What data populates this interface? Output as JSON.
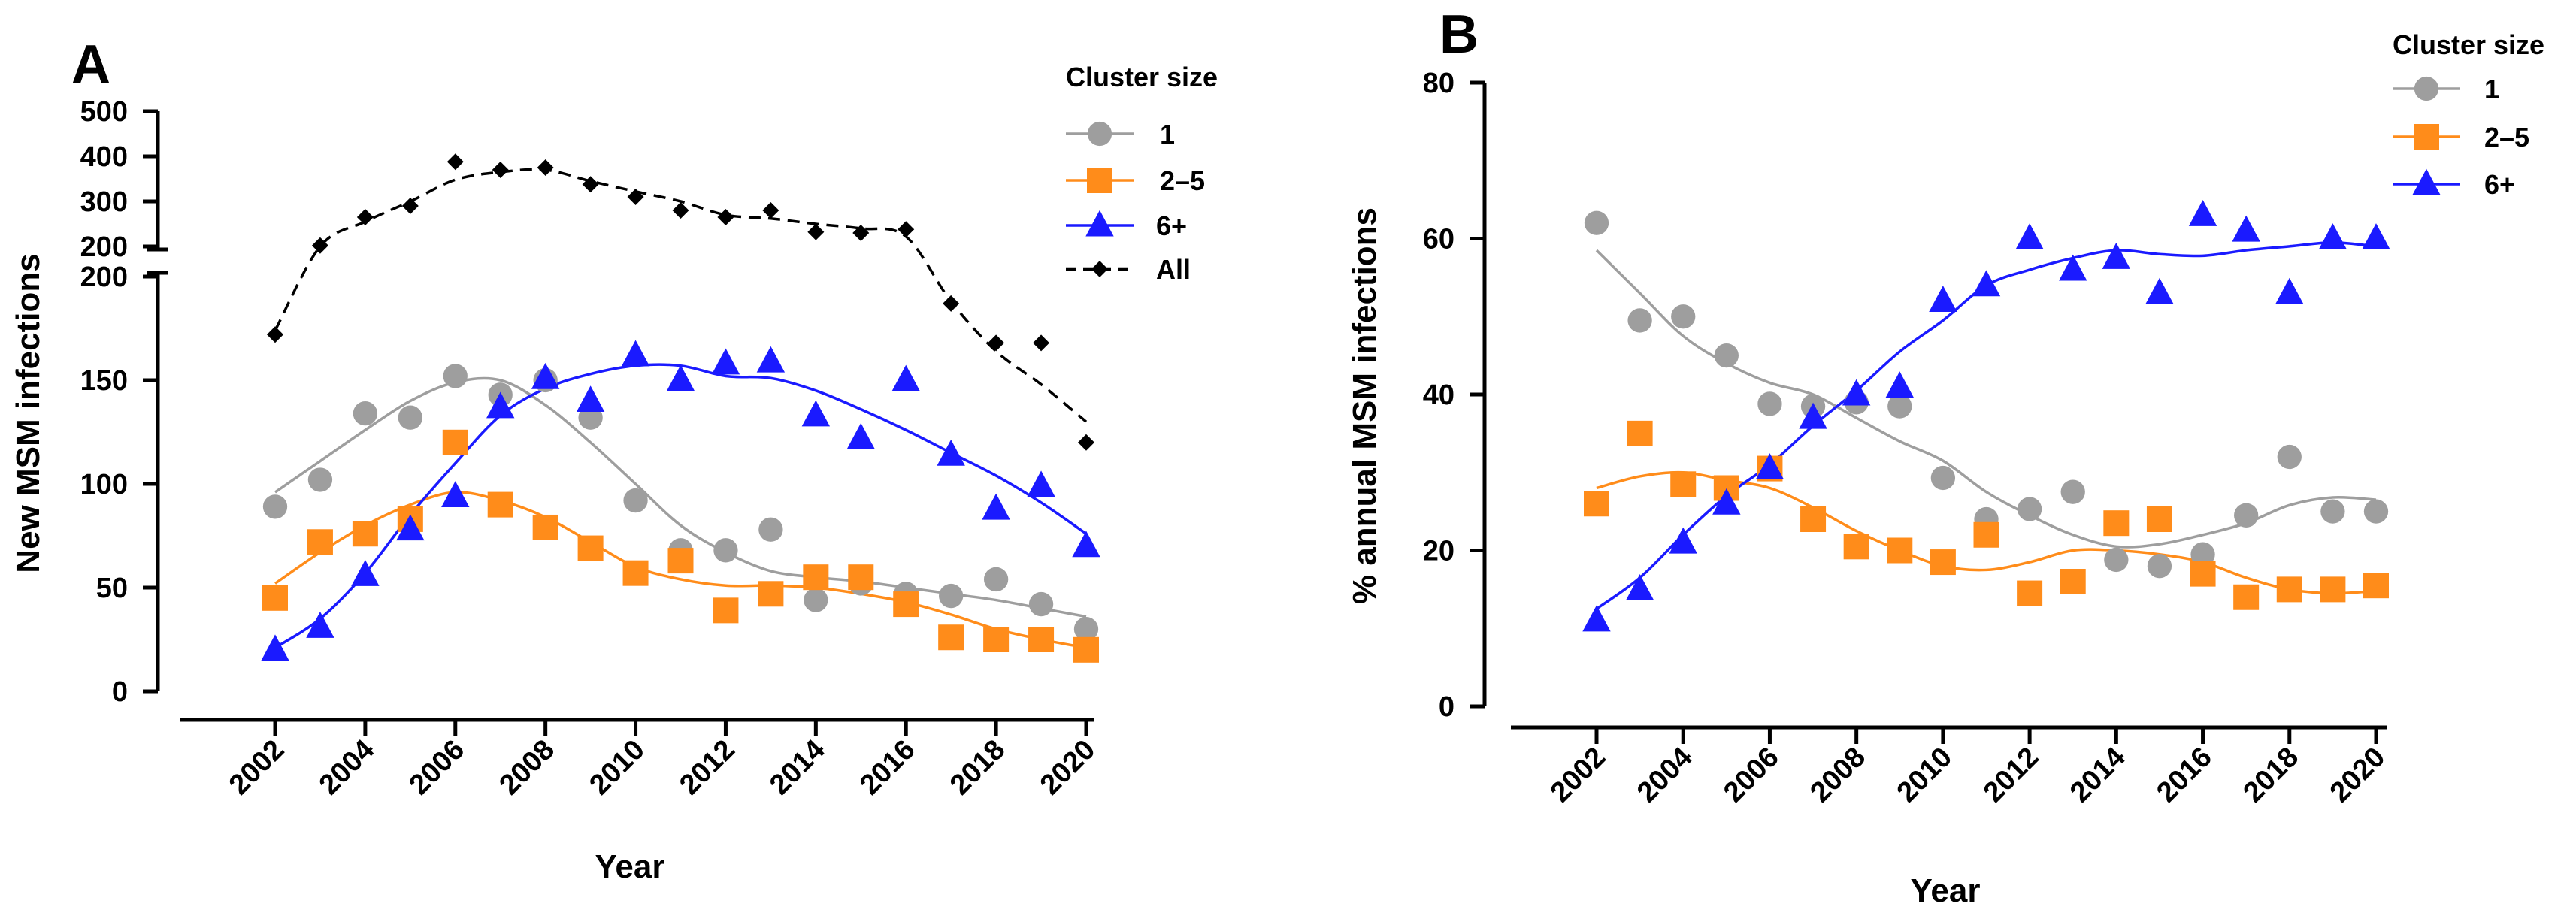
{
  "colors": {
    "c1": "#9e9e9e",
    "c2": "#ff8c1a",
    "c3": "#1a1aff",
    "all": "#000000"
  },
  "chart_data": [
    {
      "panel": "A",
      "type": "scatter",
      "xlabel": "Year",
      "ylabel": "New MSM infections",
      "legend_title": "Cluster size",
      "legend_position": "top-right",
      "x_ticks": [
        "2002",
        "2004",
        "2006",
        "2008",
        "2010",
        "2012",
        "2014",
        "2016",
        "2018",
        "2020"
      ],
      "y_ticks_lower": [
        "0",
        "50",
        "100",
        "150",
        "200"
      ],
      "y_ticks_upper": [
        "200",
        "300",
        "400",
        "500"
      ],
      "ylim_lower": [
        0,
        200
      ],
      "ylim_upper": [
        200,
        500
      ],
      "x": [
        2002,
        2003,
        2004,
        2005,
        2006,
        2007,
        2008,
        2009,
        2010,
        2011,
        2012,
        2013,
        2014,
        2015,
        2016,
        2017,
        2018,
        2019,
        2020
      ],
      "series": [
        {
          "name": "1",
          "marker": "circle",
          "color": "#9e9e9e",
          "values": [
            89,
            102,
            134,
            132,
            152,
            143,
            150,
            132,
            92,
            68,
            68,
            78,
            44,
            52,
            47,
            46,
            54,
            42,
            30
          ],
          "fit": [
            96,
            111,
            126,
            140,
            149,
            150,
            138,
            120,
            100,
            80,
            67,
            58,
            55,
            53,
            50,
            47,
            44,
            40,
            36
          ]
        },
        {
          "name": "2–5",
          "marker": "square",
          "color": "#ff8c1a",
          "values": [
            45,
            72,
            76,
            83,
            120,
            90,
            79,
            69,
            57,
            63,
            39,
            47,
            55,
            55,
            42,
            26,
            25,
            25,
            20
          ],
          "fit": [
            52,
            67,
            80,
            90,
            96,
            92,
            84,
            72,
            60,
            54,
            51,
            51,
            50,
            47,
            43,
            37,
            30,
            25,
            21
          ]
        },
        {
          "name": "6+",
          "marker": "triangle",
          "color": "#1a1aff",
          "values": [
            20,
            31,
            56,
            78,
            94,
            137,
            151,
            140,
            162,
            150,
            158,
            159,
            133,
            122,
            150,
            114,
            88,
            99,
            70
          ],
          "fit": [
            21,
            35,
            57,
            85,
            110,
            133,
            146,
            153,
            157,
            157,
            152,
            151,
            145,
            136,
            126,
            115,
            104,
            91,
            76
          ]
        },
        {
          "name": "All",
          "marker": "diamond",
          "color": "#000000",
          "dashed": true,
          "values": [
            172,
            202,
            265,
            290,
            388,
            370,
            375,
            338,
            310,
            280,
            265,
            280,
            232,
            230,
            238,
            187,
            168,
            168,
            120
          ],
          "fit": [
            174,
            200,
            255,
            300,
            348,
            365,
            370,
            345,
            322,
            300,
            270,
            262,
            250,
            240,
            222,
            188,
            164,
            148,
            130
          ]
        }
      ]
    },
    {
      "panel": "B",
      "type": "scatter",
      "xlabel": "Year",
      "ylabel": "% annual MSM infections",
      "legend_title": "Cluster size",
      "legend_position": "top-right",
      "x_ticks": [
        "2002",
        "2004",
        "2006",
        "2008",
        "2010",
        "2012",
        "2014",
        "2016",
        "2018",
        "2020"
      ],
      "y_ticks": [
        "0",
        "20",
        "40",
        "60",
        "80"
      ],
      "ylim": [
        0,
        80
      ],
      "x": [
        2002,
        2003,
        2004,
        2005,
        2006,
        2007,
        2008,
        2009,
        2010,
        2011,
        2012,
        2013,
        2014,
        2015,
        2016,
        2017,
        2018,
        2019,
        2020
      ],
      "series": [
        {
          "name": "1",
          "marker": "circle",
          "color": "#9e9e9e",
          "values": [
            62,
            49.5,
            50,
            45,
            38.8,
            38.5,
            39,
            38.5,
            29.3,
            24,
            25.3,
            27.5,
            18.8,
            18,
            19.5,
            24.5,
            32,
            25,
            25
          ],
          "fit": [
            58.5,
            53,
            47.5,
            44,
            41.5,
            40,
            37,
            34,
            31.5,
            27.5,
            24.5,
            22,
            20.5,
            20.8,
            22,
            23.5,
            25.8,
            26.8,
            26.5
          ]
        },
        {
          "name": "2–5",
          "marker": "square",
          "color": "#ff8c1a",
          "values": [
            26,
            35,
            28.5,
            28,
            30.5,
            24,
            20.5,
            20,
            18.5,
            22,
            14.5,
            16,
            23.5,
            24,
            17,
            14,
            15,
            15,
            15.5
          ],
          "fit": [
            28,
            29.5,
            30,
            29,
            28,
            25.5,
            22.5,
            20,
            18,
            17.5,
            18.5,
            20,
            20,
            19.5,
            18.5,
            16.5,
            15,
            14.5,
            14.8
          ]
        },
        {
          "name": "6+",
          "marker": "triangle",
          "color": "#1a1aff",
          "values": [
            11,
            15,
            21,
            26,
            30.5,
            37,
            40,
            41,
            52,
            54,
            60,
            56,
            57.5,
            53,
            63,
            61,
            53,
            60,
            60
          ],
          "fit": [
            12.5,
            16.5,
            22,
            27,
            31,
            36,
            40.5,
            45.5,
            49.5,
            54,
            56,
            57.5,
            58.5,
            58,
            57.8,
            58.5,
            59,
            59.5,
            59
          ]
        }
      ]
    }
  ]
}
